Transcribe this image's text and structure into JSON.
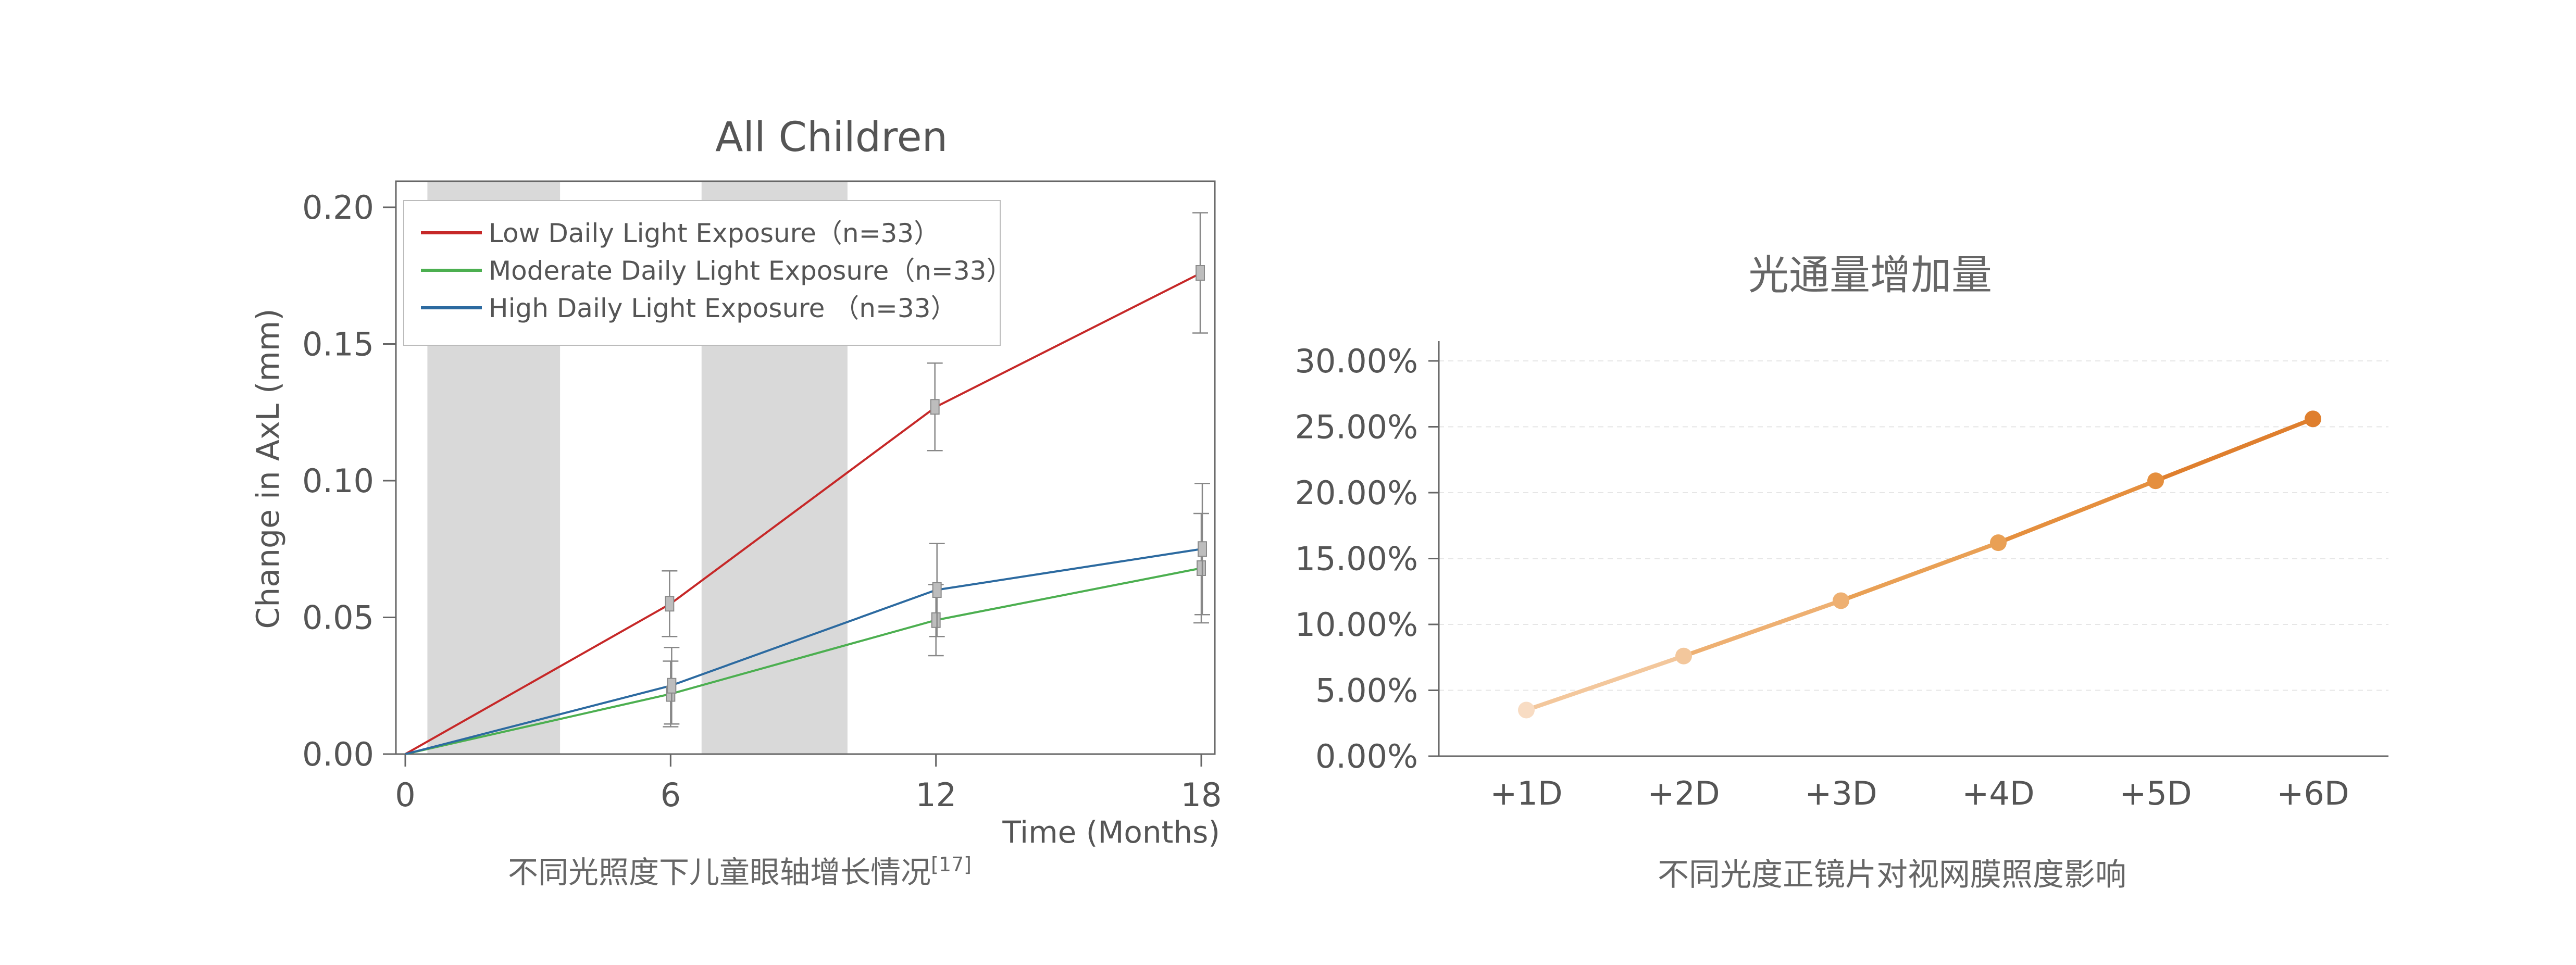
{
  "left": {
    "caption": "不同光照度下儿童眼轴增长情况",
    "caption_ref": "[17]",
    "colors": {
      "red": "#c62828",
      "green": "#4caf50",
      "blue": "#2c6aa0",
      "shade": "#d9d9d9",
      "axis": "#666666",
      "errorbar": "#888888"
    },
    "chart_data": {
      "type": "line",
      "title": "All Children",
      "xlabel": "Time (Months)",
      "ylabel": "Change in AxL (mm)",
      "xlim": [
        0,
        18
      ],
      "ylim": [
        0,
        0.2
      ],
      "xticks": [
        0,
        6,
        12,
        18
      ],
      "xtick_labels": [
        "0",
        "6",
        "12",
        "18"
      ],
      "yticks": [
        0.0,
        0.05,
        0.1,
        0.15,
        0.2
      ],
      "ytick_labels": [
        "0.00",
        "0.05",
        "0.10",
        "0.15",
        "0.20"
      ],
      "shaded_x_ranges": [
        [
          0.5,
          3.5
        ],
        [
          6.7,
          10.0
        ]
      ],
      "legend_position": "top-left",
      "grid": false,
      "series": [
        {
          "name": "Low Daily Light Exposure（n=33）",
          "color": "#c62828",
          "x": [
            0,
            6,
            12,
            18
          ],
          "y": [
            0,
            0.055,
            0.127,
            0.176
          ],
          "err": [
            0,
            0.012,
            0.016,
            0.022
          ]
        },
        {
          "name": "Moderate Daily Light Exposure（n=33）",
          "color": "#4caf50",
          "x": [
            0,
            6,
            12,
            18
          ],
          "y": [
            0,
            0.022,
            0.049,
            0.068
          ],
          "err": [
            0,
            0.012,
            0.013,
            0.02
          ]
        },
        {
          "name": "High Daily Light Exposure （n=33）",
          "color": "#2c6aa0",
          "x": [
            0,
            6,
            12,
            18
          ],
          "y": [
            0,
            0.025,
            0.06,
            0.075
          ],
          "err": [
            0,
            0.014,
            0.017,
            0.024
          ]
        }
      ]
    }
  },
  "right": {
    "caption": "不同光度正镜片对视网膜照度影响",
    "colors": {
      "grid": "#e6e6e6",
      "axis": "#666666"
    },
    "chart_data": {
      "type": "line",
      "title": "光通量增加量",
      "categories": [
        "+1D",
        "+2D",
        "+3D",
        "+4D",
        "+5D",
        "+6D"
      ],
      "values": [
        3.5,
        7.6,
        11.8,
        16.2,
        20.9,
        25.6
      ],
      "ylim": [
        0,
        30
      ],
      "yticks": [
        0,
        5,
        10,
        15,
        20,
        25,
        30
      ],
      "ytick_labels": [
        "0.00%",
        "5.00%",
        "10.00%",
        "15.00%",
        "20.00%",
        "25.00%",
        "30.00%"
      ],
      "grid": true,
      "point_colors": [
        "#f8dcc3",
        "#f3c79c",
        "#eeb072",
        "#e9a055",
        "#e58f3e",
        "#df7f2e"
      ]
    }
  }
}
